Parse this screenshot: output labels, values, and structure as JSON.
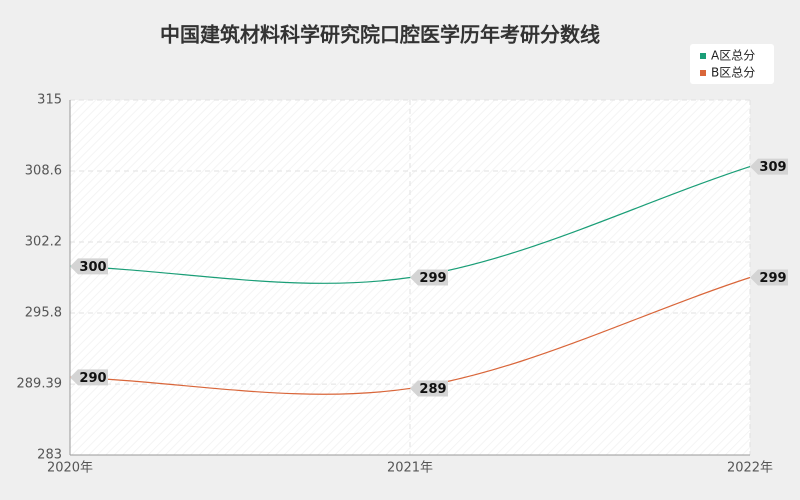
{
  "chart_data": {
    "type": "line",
    "title": "中国建筑材料科学研究院口腔医学历年考研分数线",
    "categories": [
      "2020年",
      "2021年",
      "2022年"
    ],
    "series": [
      {
        "name": "A区总分",
        "color": "#1a9e77",
        "values": [
          300,
          299,
          309
        ]
      },
      {
        "name": "B区总分",
        "color": "#d9663a",
        "values": [
          290,
          289,
          299
        ]
      }
    ],
    "ylim": [
      283,
      315
    ],
    "yticks": [
      283,
      289.39,
      295.8,
      302.2,
      308.6,
      315
    ],
    "grid": true,
    "legend": "top-right"
  }
}
